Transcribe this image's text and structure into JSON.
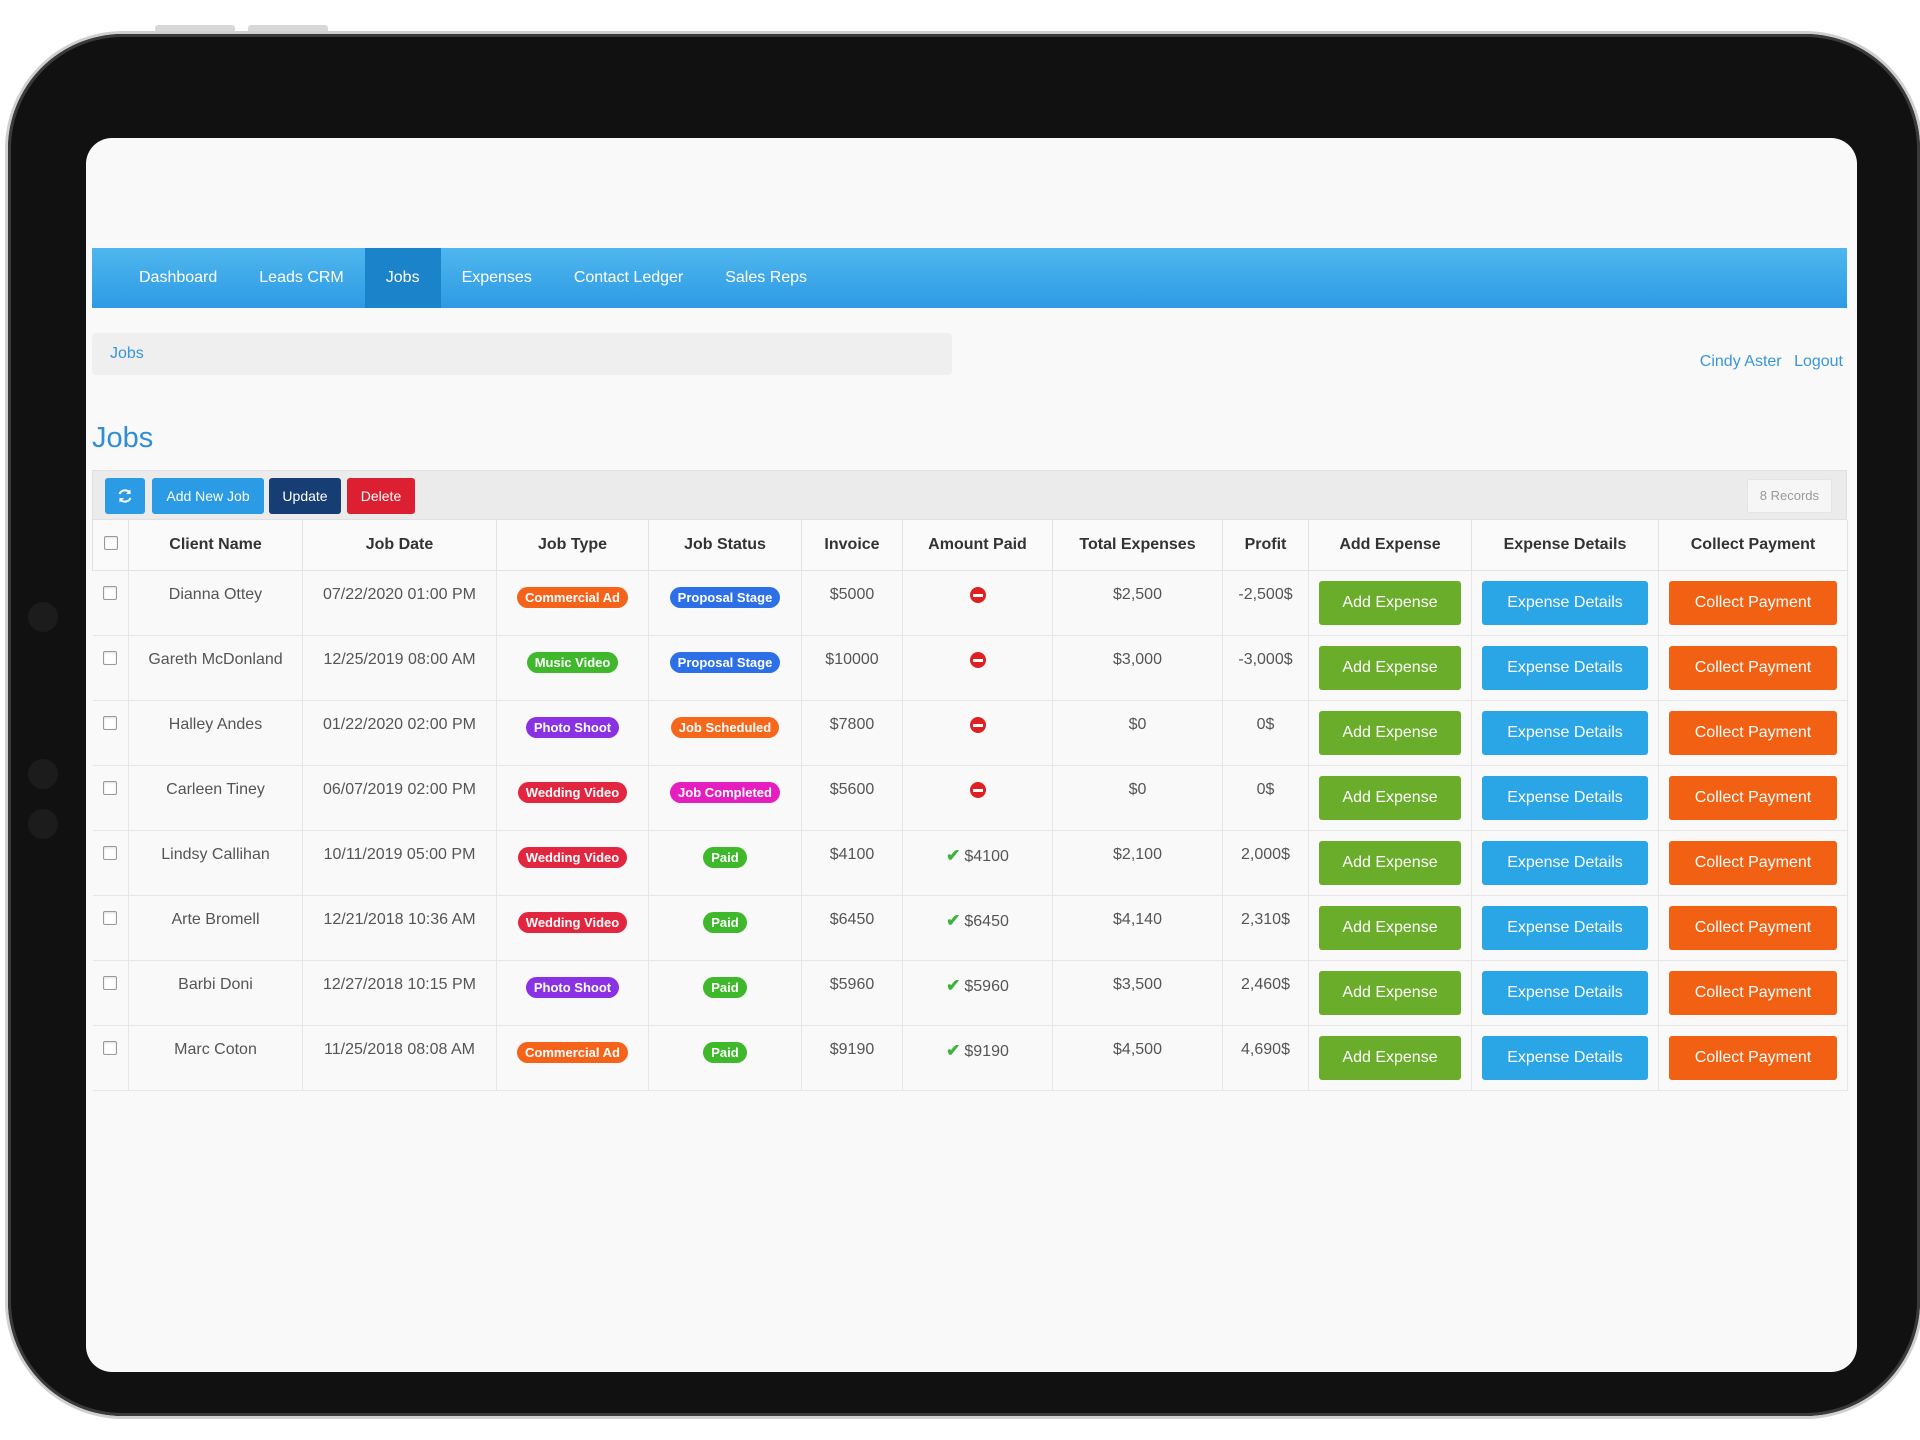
{
  "colors": {
    "nav_blue": "#2d9be4",
    "title_blue": "#2e8fd5",
    "add_new_job": "#2b9be6",
    "update": "#163d74",
    "delete": "#dd1f32",
    "add_expense": "#6aad2a",
    "expense_details": "#2aa5e5",
    "collect_payment": "#f26013"
  },
  "nav": {
    "items": [
      {
        "label": "Dashboard"
      },
      {
        "label": "Leads CRM"
      },
      {
        "label": "Jobs"
      },
      {
        "label": "Expenses"
      },
      {
        "label": "Contact Ledger"
      },
      {
        "label": "Sales Reps"
      }
    ],
    "active": "Jobs"
  },
  "breadcrumb": "Jobs",
  "user": {
    "name": "Cindy Aster",
    "logout": "Logout"
  },
  "page_title": "Jobs",
  "toolbar": {
    "refresh_icon": "refresh-icon",
    "add_new_job": "Add New Job",
    "update": "Update",
    "delete": "Delete",
    "records": "8 Records"
  },
  "columns": [
    "Client Name",
    "Job Date",
    "Job Type",
    "Job Status",
    "Invoice",
    "Amount Paid",
    "Total Expenses",
    "Profit",
    "Add Expense",
    "Expense Details",
    "Collect Payment"
  ],
  "actions": {
    "add_expense": "Add Expense",
    "expense_details": "Expense Details",
    "collect_payment": "Collect Payment"
  },
  "type_colors": {
    "Commercial Ad": "#f5631b",
    "Music Video": "#3fb82c",
    "Photo Shoot": "#8a31e4",
    "Wedding Video": "#e2263f"
  },
  "status_colors": {
    "Proposal Stage": "#2c6fe6",
    "Job Scheduled": "#f5681c",
    "Job Completed": "#e51fbf",
    "Paid": "#3fb82c"
  },
  "rows": [
    {
      "client": "Dianna Ottey",
      "date": "07/22/2020 01:00 PM",
      "type": "Commercial Ad",
      "status": "Proposal Stage",
      "invoice": "$5000",
      "paid": "",
      "paid_icon": "no-entry-icon",
      "expenses": "$2,500",
      "profit": "-2,500$",
      "profit_negative": true
    },
    {
      "client": "Gareth McDonland",
      "date": "12/25/2019 08:00 AM",
      "type": "Music Video",
      "status": "Proposal Stage",
      "invoice": "$10000",
      "paid": "",
      "paid_icon": "no-entry-icon",
      "expenses": "$3,000",
      "profit": "-3,000$",
      "profit_negative": true
    },
    {
      "client": "Halley Andes",
      "date": "01/22/2020 02:00 PM",
      "type": "Photo Shoot",
      "status": "Job Scheduled",
      "invoice": "$7800",
      "paid": "",
      "paid_icon": "no-entry-icon",
      "expenses": "$0",
      "profit": "0$",
      "profit_negative": false
    },
    {
      "client": "Carleen Tiney",
      "date": "06/07/2019 02:00 PM",
      "type": "Wedding Video",
      "status": "Job Completed",
      "invoice": "$5600",
      "paid": "",
      "paid_icon": "no-entry-icon",
      "expenses": "$0",
      "profit": "0$",
      "profit_negative": false
    },
    {
      "client": "Lindsy Callihan",
      "date": "10/11/2019 05:00 PM",
      "type": "Wedding Video",
      "status": "Paid",
      "invoice": "$4100",
      "paid": "$4100",
      "paid_icon": "check-icon",
      "expenses": "$2,100",
      "profit": "2,000$",
      "profit_negative": false
    },
    {
      "client": "Arte Bromell",
      "date": "12/21/2018 10:36 AM",
      "type": "Wedding Video",
      "status": "Paid",
      "invoice": "$6450",
      "paid": "$6450",
      "paid_icon": "check-icon",
      "expenses": "$4,140",
      "profit": "2,310$",
      "profit_negative": false
    },
    {
      "client": "Barbi Doni",
      "date": "12/27/2018 10:15 PM",
      "type": "Photo Shoot",
      "status": "Paid",
      "invoice": "$5960",
      "paid": "$5960",
      "paid_icon": "check-icon",
      "expenses": "$3,500",
      "profit": "2,460$",
      "profit_negative": false
    },
    {
      "client": "Marc Coton",
      "date": "11/25/2018 08:08 AM",
      "type": "Commercial Ad",
      "status": "Paid",
      "invoice": "$9190",
      "paid": "$9190",
      "paid_icon": "check-icon",
      "expenses": "$4,500",
      "profit": "4,690$",
      "profit_negative": false
    }
  ]
}
